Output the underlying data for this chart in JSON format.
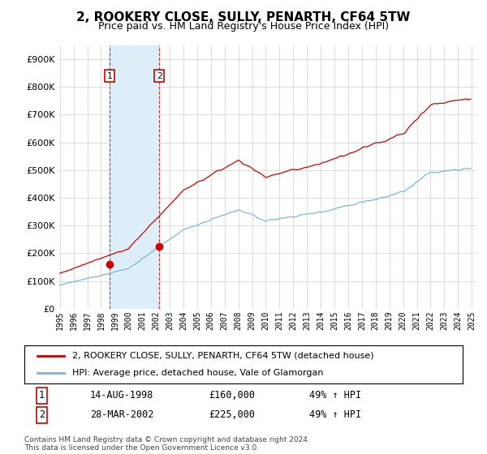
{
  "title": "2, ROOKERY CLOSE, SULLY, PENARTH, CF64 5TW",
  "subtitle": "Price paid vs. HM Land Registry's House Price Index (HPI)",
  "legend_line1": "2, ROOKERY CLOSE, SULLY, PENARTH, CF64 5TW (detached house)",
  "legend_line2": "HPI: Average price, detached house, Vale of Glamorgan",
  "sale1_label": "1",
  "sale1_date": "14-AUG-1998",
  "sale1_price": 160000,
  "sale1_hpi": "49% ↑ HPI",
  "sale1_year": 1998.62,
  "sale2_label": "2",
  "sale2_date": "28-MAR-2002",
  "sale2_price": 225000,
  "sale2_hpi": "49% ↑ HPI",
  "sale2_year": 2002.24,
  "footnote": "Contains HM Land Registry data © Crown copyright and database right 2024.\nThis data is licensed under the Open Government Licence v3.0.",
  "hpi_color": "#7ab4d8",
  "price_color": "#cc0000",
  "sale_marker_color": "#cc0000",
  "background_color": "#ffffff",
  "grid_color": "#cccccc",
  "highlight_box_color": "#ddeef8",
  "ylim": [
    0,
    950000
  ],
  "yticks": [
    0,
    100000,
    200000,
    300000,
    400000,
    500000,
    600000,
    700000,
    800000,
    900000
  ],
  "x_start_year": 1995,
  "x_end_year": 2025
}
